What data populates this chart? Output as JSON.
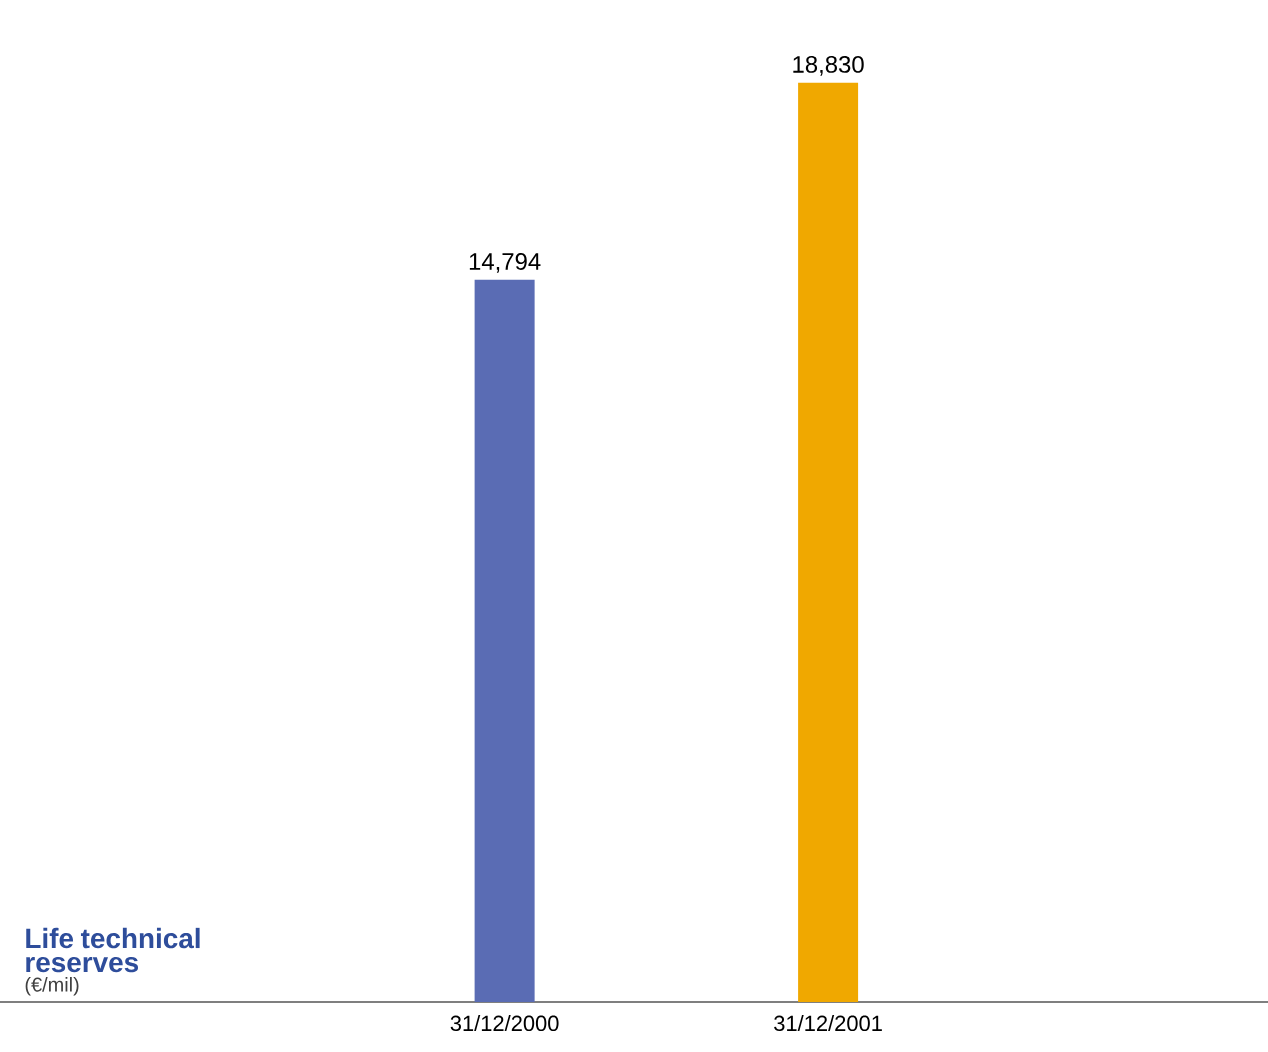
{
  "chart_data": {
    "type": "bar",
    "title": "Life technical reserves",
    "subtitle": "(€/mil)",
    "categories": [
      "31/12/2000",
      "31/12/2001"
    ],
    "values": [
      14794,
      18830
    ],
    "colors": [
      "#5a6cb4",
      "#f0a800"
    ],
    "value_labels": [
      "14,794",
      "18,830"
    ]
  }
}
